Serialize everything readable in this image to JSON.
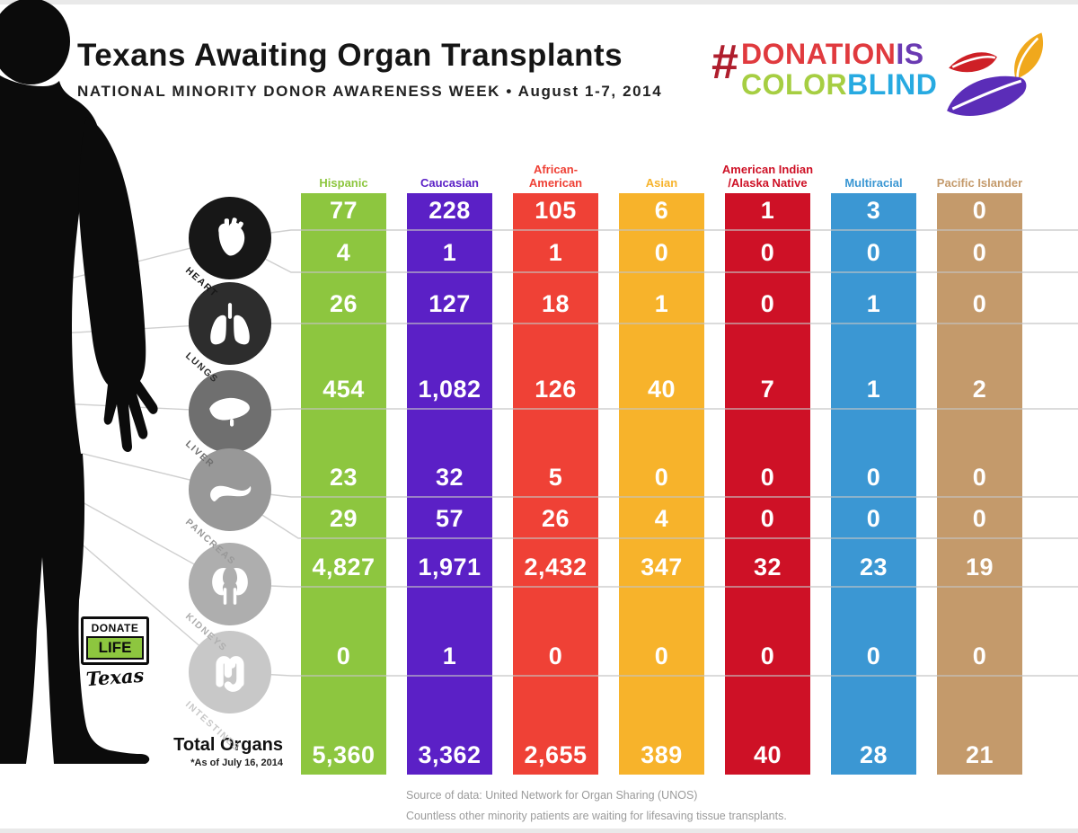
{
  "header": {
    "title": "Texans Awaiting Organ Transplants",
    "subtitle": "NATIONAL MINORITY DONOR AWARENESS WEEK  •  August 1-7, 2014"
  },
  "hashtag": {
    "hash": "#",
    "hash_color": "#AF1E2D",
    "line1": [
      {
        "text": "DONATION",
        "color": "#E03A3E"
      },
      {
        "text": "IS",
        "color": "#6A3AB2"
      }
    ],
    "line2": [
      {
        "text": "COLOR",
        "color": "#A6CE42"
      },
      {
        "text": "BLIND",
        "color": "#27AAE1"
      }
    ],
    "leaf_colors": {
      "red": "#CE2026",
      "gold": "#F0A81C",
      "purple": "#5B2DB8"
    }
  },
  "organs": [
    {
      "name": "heart",
      "label": "HEART",
      "circle_color": "#171717"
    },
    {
      "name": "lungs",
      "label": "LUNGS",
      "circle_color": "#2d2d2d"
    },
    {
      "name": "liver",
      "label": "LIVER",
      "circle_color": "#6f6f6f"
    },
    {
      "name": "pancreas",
      "label": "PANCREAS",
      "circle_color": "#989898"
    },
    {
      "name": "kidneys",
      "label": "KIDNEYS",
      "circle_color": "#aeaeae"
    },
    {
      "name": "intestines",
      "label": "INTESTINES",
      "circle_color": "#c8c8c8"
    }
  ],
  "chart_data": {
    "type": "table",
    "title": "Texans Awaiting Organ Transplants",
    "columns": [
      {
        "label": "Hispanic",
        "color": "#8DC63F"
      },
      {
        "label": "Caucasian",
        "color": "#5B20C6"
      },
      {
        "label": "African-\nAmerican",
        "color": "#EF4136"
      },
      {
        "label": "Asian",
        "color": "#F7B32B"
      },
      {
        "label": "American Indian\n/Alaska Native",
        "color": "#CE1126"
      },
      {
        "label": "Multiracial",
        "color": "#3B97D3"
      },
      {
        "label": "Pacific Islander",
        "color": "#C49A6B"
      }
    ],
    "rows": [
      {
        "organ_group": "HEART",
        "values": [
          "77",
          "228",
          "105",
          "6",
          "1",
          "3",
          "0"
        ]
      },
      {
        "organ_group": "HEART",
        "values": [
          "4",
          "1",
          "1",
          "0",
          "0",
          "0",
          "0"
        ]
      },
      {
        "organ_group": "LUNGS",
        "values": [
          "26",
          "127",
          "18",
          "1",
          "0",
          "1",
          "0"
        ]
      },
      {
        "organ_group": "LIVER",
        "values": [
          "454",
          "1,082",
          "126",
          "40",
          "7",
          "1",
          "2"
        ]
      },
      {
        "organ_group": "PANCREAS",
        "values": [
          "23",
          "32",
          "5",
          "0",
          "0",
          "0",
          "0"
        ]
      },
      {
        "organ_group": "PANCREAS",
        "values": [
          "29",
          "57",
          "26",
          "4",
          "0",
          "0",
          "0"
        ]
      },
      {
        "organ_group": "KIDNEYS",
        "values": [
          "4,827",
          "1,971",
          "2,432",
          "347",
          "32",
          "23",
          "19"
        ]
      },
      {
        "organ_group": "INTESTINES",
        "values": [
          "0",
          "1",
          "0",
          "0",
          "0",
          "0",
          "0"
        ]
      },
      {
        "organ_group": "TOTAL ORGANS",
        "values": [
          "5,360",
          "3,362",
          "2,655",
          "389",
          "40",
          "28",
          "21"
        ]
      }
    ]
  },
  "total_label": {
    "label": "Total Organs",
    "footnote": "*As of July 16, 2014"
  },
  "donate_life_logo": {
    "line1": "DONATE",
    "line2": "LIFE",
    "line3": "Texas",
    "green": "#8DC63F"
  },
  "footer": {
    "source": "Source of data: United Network for Organ Sharing (UNOS)",
    "note": "Countless other minority patients are waiting for lifesaving tissue transplants."
  }
}
